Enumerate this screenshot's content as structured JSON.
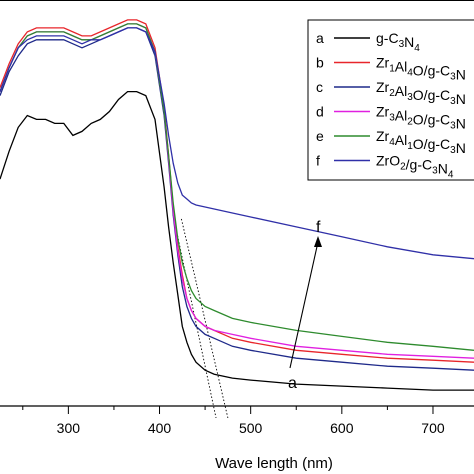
{
  "chart_data": {
    "type": "line",
    "title": "",
    "xlabel": "Wave length (nm)",
    "ylabel": "",
    "xlim": [
      225,
      745
    ],
    "ylim": [
      0,
      100
    ],
    "x_ticks": [
      300,
      400,
      500,
      600,
      700
    ],
    "grid": false,
    "legend_position": "top-right",
    "series": [
      {
        "key": "a",
        "name_main": "g-C",
        "name_sub": "3",
        "name_mid": "N",
        "name_sub2": "4",
        "color": "#000000",
        "x": [
          225,
          235,
          245,
          255,
          265,
          275,
          285,
          295,
          305,
          315,
          325,
          335,
          345,
          355,
          365,
          375,
          385,
          395,
          405,
          410,
          415,
          420,
          425,
          430,
          435,
          440,
          450,
          460,
          480,
          500,
          550,
          600,
          650,
          700,
          745
        ],
        "y": [
          57,
          64,
          70,
          73,
          72,
          72,
          71,
          71,
          68,
          69,
          71,
          72,
          74,
          77,
          79,
          79,
          78,
          72,
          55,
          45,
          36,
          28,
          20,
          16,
          13,
          11,
          9,
          8,
          7,
          6.5,
          5.5,
          5,
          4.5,
          4,
          4
        ]
      },
      {
        "key": "b",
        "name_main": "Zr",
        "name_sub": "1",
        "name_mid": "Al",
        "name_sub2": "4",
        "name_tail": "O/g-C",
        "name_sub3": "3",
        "name_end": "N",
        "color": "#e8262b",
        "x": [
          225,
          235,
          245,
          255,
          265,
          275,
          285,
          295,
          305,
          315,
          325,
          335,
          345,
          355,
          365,
          375,
          385,
          395,
          405,
          410,
          415,
          420,
          425,
          430,
          435,
          440,
          450,
          460,
          480,
          500,
          550,
          600,
          650,
          700,
          745
        ],
        "y": [
          80,
          86,
          91,
          94,
          95,
          95,
          95,
          95,
          94,
          93,
          93,
          94,
          95,
          96,
          97,
          97,
          96,
          90,
          75,
          63,
          50,
          40,
          33,
          27,
          24,
          22,
          20,
          19,
          17,
          16,
          14,
          13,
          12,
          11.5,
          11
        ]
      },
      {
        "key": "c",
        "name_main": "Zr",
        "name_sub": "2",
        "name_mid": "Al",
        "name_sub2": "3",
        "name_tail": "O/g-C",
        "name_sub3": "3",
        "name_end": "N",
        "color": "#1f2a8a",
        "x": [
          225,
          235,
          245,
          255,
          265,
          275,
          285,
          295,
          305,
          315,
          325,
          335,
          345,
          355,
          365,
          375,
          385,
          395,
          405,
          410,
          415,
          420,
          425,
          430,
          435,
          440,
          450,
          460,
          480,
          500,
          550,
          600,
          650,
          700,
          745
        ],
        "y": [
          78,
          84,
          88,
          91,
          92,
          92,
          92,
          92,
          91,
          90,
          91,
          92,
          93,
          94,
          95,
          95,
          94,
          88,
          73,
          61,
          48,
          38,
          30,
          25,
          22,
          20,
          18,
          17,
          15,
          14,
          12,
          11,
          10,
          9.5,
          9
        ]
      },
      {
        "key": "d",
        "name_main": "Zr",
        "name_sub": "3",
        "name_mid": "Al",
        "name_sub2": "2",
        "name_tail": "O/g-C",
        "name_sub3": "3",
        "name_end": "N",
        "color": "#e020e0",
        "x": [
          225,
          235,
          245,
          255,
          265,
          275,
          285,
          295,
          305,
          315,
          325,
          335,
          345,
          355,
          365,
          375,
          385,
          395,
          405,
          410,
          415,
          420,
          425,
          430,
          435,
          440,
          450,
          460,
          480,
          500,
          550,
          600,
          650,
          700,
          745
        ],
        "y": [
          79,
          85,
          90,
          93,
          94,
          94,
          94,
          94,
          93,
          92,
          92,
          93,
          94,
          95,
          96,
          96,
          95,
          89,
          74,
          62,
          49,
          39,
          32,
          27,
          24,
          22,
          20,
          19,
          18,
          17,
          15,
          14,
          13,
          12.5,
          12
        ]
      },
      {
        "key": "e",
        "name_main": "Zr",
        "name_sub": "4",
        "name_mid": "Al",
        "name_sub2": "1",
        "name_tail": "O/g-C",
        "name_sub3": "3",
        "name_end": "N",
        "color": "#2e8b2e",
        "x": [
          225,
          235,
          245,
          255,
          265,
          275,
          285,
          295,
          305,
          315,
          325,
          335,
          345,
          355,
          365,
          375,
          385,
          395,
          405,
          410,
          415,
          420,
          425,
          430,
          435,
          440,
          450,
          460,
          480,
          500,
          550,
          600,
          650,
          700,
          745
        ],
        "y": [
          79,
          85,
          90,
          93,
          94,
          94,
          94,
          94,
          93,
          92,
          92,
          93,
          94,
          95,
          96,
          96,
          95,
          89,
          74,
          63,
          51,
          42,
          36,
          32,
          29,
          27,
          25,
          24,
          22,
          21,
          19,
          17.5,
          16,
          15,
          14
        ]
      },
      {
        "key": "f",
        "name_main": "ZrO",
        "name_sub": "2",
        "name_tail": "/g-C",
        "name_sub3": "3",
        "name_end": "N",
        "name_sub4": "4",
        "color": "#3030a8",
        "x": [
          225,
          235,
          245,
          255,
          265,
          275,
          285,
          295,
          305,
          315,
          325,
          335,
          345,
          355,
          365,
          375,
          385,
          395,
          405,
          410,
          415,
          420,
          425,
          430,
          435,
          440,
          450,
          460,
          480,
          500,
          550,
          600,
          650,
          700,
          745
        ],
        "y": [
          79,
          85,
          90,
          92,
          93,
          93,
          93,
          93,
          92,
          91,
          92,
          92,
          93,
          94,
          95,
          95,
          94,
          89,
          76,
          68,
          61,
          56,
          53,
          52,
          51,
          50.5,
          50,
          49.5,
          48.5,
          47.5,
          45,
          42.5,
          40,
          38,
          37
        ]
      }
    ],
    "annotations": {
      "arrow_start_label": "a",
      "arrow_end_label": "f"
    },
    "tangent_lines": [
      {
        "from": [
          415,
          48
        ],
        "to": [
          462,
          -3
        ]
      },
      {
        "from": [
          424,
          47
        ],
        "to": [
          475,
          -3
        ]
      }
    ]
  }
}
